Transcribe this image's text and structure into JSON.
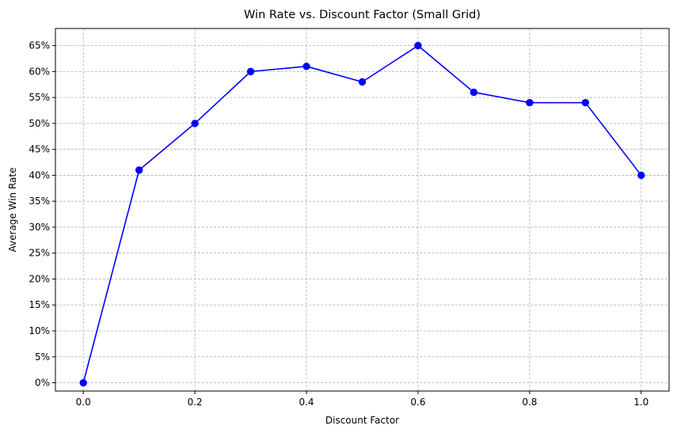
{
  "chart_data": {
    "type": "line",
    "title": "Win Rate vs. Discount Factor (Small Grid)",
    "xlabel": "Discount Factor",
    "ylabel": "Average Win Rate",
    "xlim": [
      -0.05,
      1.05
    ],
    "ylim": [
      -1.6,
      68.3
    ],
    "x_ticks": [
      0.0,
      0.2,
      0.4,
      0.6,
      0.8,
      1.0
    ],
    "x_tick_labels": [
      "0.0",
      "0.2",
      "0.4",
      "0.6",
      "0.8",
      "1.0"
    ],
    "y_ticks": [
      0,
      5,
      10,
      15,
      20,
      25,
      30,
      35,
      40,
      45,
      50,
      55,
      60,
      65
    ],
    "y_tick_labels": [
      "0%",
      "5%",
      "10%",
      "15%",
      "20%",
      "25%",
      "30%",
      "35%",
      "40%",
      "45%",
      "50%",
      "55%",
      "60%",
      "65%"
    ],
    "grid": true,
    "series": [
      {
        "color": "#0000ff",
        "marker": "circle",
        "x": [
          0.0,
          0.1,
          0.2,
          0.3,
          0.4,
          0.5,
          0.6,
          0.7,
          0.8,
          0.9,
          1.0
        ],
        "y": [
          0,
          41,
          50,
          60,
          61,
          58,
          65,
          56,
          54,
          54,
          40
        ]
      }
    ]
  }
}
